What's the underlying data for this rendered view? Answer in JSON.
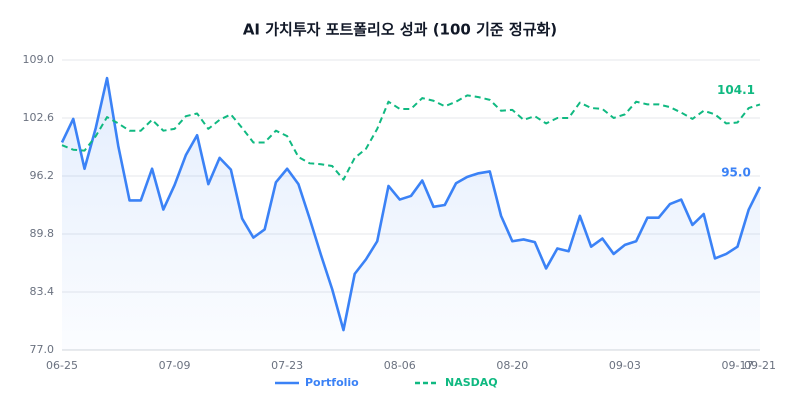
{
  "chart_data": {
    "type": "line",
    "title": "AI 가치투자 포트폴리오 성과 (100 기준 정규화)",
    "categories": [
      "06-25",
      null,
      null,
      null,
      null,
      null,
      null,
      null,
      null,
      null,
      "07-09",
      null,
      null,
      null,
      null,
      null,
      null,
      null,
      null,
      null,
      "07-23",
      null,
      null,
      null,
      null,
      null,
      null,
      null,
      null,
      null,
      "08-06",
      null,
      null,
      null,
      null,
      null,
      null,
      null,
      null,
      null,
      "08-20",
      null,
      null,
      null,
      null,
      null,
      null,
      null,
      null,
      null,
      "09-03",
      null,
      null,
      null,
      null,
      null,
      null,
      null,
      null,
      null,
      "09-17",
      null,
      "09-21"
    ],
    "series": [
      {
        "name": "Portfolio",
        "color": "#3b82f6",
        "dash": false,
        "fill": true,
        "values": [
          99.9,
          102.5,
          97.0,
          101.5,
          107.0,
          99.5,
          93.5,
          93.5,
          97.0,
          92.5,
          95.2,
          98.5,
          100.7,
          95.3,
          98.2,
          96.9,
          91.5,
          89.4,
          90.3,
          95.5,
          97.0,
          95.3,
          91.5,
          87.5,
          83.7,
          79.2,
          85.4,
          87.0,
          89.0,
          95.1,
          93.6,
          94.0,
          95.7,
          92.8,
          93.0,
          95.4,
          96.1,
          96.5,
          96.7,
          91.8,
          89.0,
          89.2,
          88.9,
          86.0,
          88.2,
          87.9,
          91.8,
          88.4,
          89.3,
          87.6,
          88.6,
          89.0,
          91.6,
          91.6,
          93.1,
          93.6,
          90.8,
          92.0,
          87.1,
          87.6,
          88.4,
          92.5,
          95.0
        ],
        "value_labels": [
          null,
          null,
          null,
          null,
          null,
          null,
          null,
          null,
          null,
          null,
          null,
          null,
          null,
          null,
          null,
          null,
          null,
          null,
          null,
          null,
          null,
          null,
          null,
          null,
          null,
          null,
          null,
          null,
          null,
          null,
          null,
          null,
          null,
          null,
          null,
          null,
          null,
          null,
          null,
          null,
          null,
          null,
          null,
          null,
          null,
          null,
          null,
          null,
          null,
          null,
          null,
          null,
          null,
          null,
          null,
          null,
          null,
          null,
          null,
          null,
          null,
          null,
          "95.0"
        ]
      },
      {
        "name": "NASDAQ",
        "color": "#10b981",
        "dash": true,
        "fill": false,
        "values": [
          99.6,
          99.1,
          99.0,
          100.6,
          102.7,
          102.0,
          101.2,
          101.2,
          102.4,
          101.2,
          101.4,
          102.8,
          103.1,
          101.4,
          102.4,
          103.0,
          101.5,
          99.9,
          99.9,
          101.2,
          100.6,
          98.3,
          97.6,
          97.5,
          97.3,
          95.8,
          98.2,
          99.2,
          101.4,
          104.4,
          103.6,
          103.6,
          104.8,
          104.5,
          103.9,
          104.4,
          105.1,
          104.9,
          104.6,
          103.4,
          103.5,
          102.4,
          102.8,
          102.0,
          102.6,
          102.6,
          104.3,
          103.7,
          103.6,
          102.6,
          103.0,
          104.4,
          104.1,
          104.1,
          103.8,
          103.2,
          102.5,
          103.4,
          103.0,
          102.0,
          102.1,
          103.7,
          104.1
        ],
        "value_labels": [
          null,
          null,
          null,
          null,
          null,
          null,
          null,
          null,
          null,
          null,
          null,
          null,
          null,
          null,
          null,
          null,
          null,
          null,
          null,
          null,
          null,
          null,
          null,
          null,
          null,
          null,
          null,
          null,
          null,
          null,
          null,
          null,
          null,
          null,
          null,
          null,
          null,
          null,
          null,
          null,
          null,
          null,
          null,
          null,
          null,
          null,
          null,
          null,
          null,
          null,
          null,
          null,
          null,
          null,
          null,
          null,
          null,
          null,
          null,
          null,
          null,
          null,
          104.1
        ]
      }
    ],
    "ylim": [
      77.0,
      109.0
    ],
    "yticks": [
      {
        "value": 77,
        "label": "77.0"
      },
      83.4,
      89.8,
      96.2,
      102.6,
      {
        "value": 109,
        "label": "109.0"
      }
    ],
    "grid": true,
    "legend": "bottom"
  }
}
